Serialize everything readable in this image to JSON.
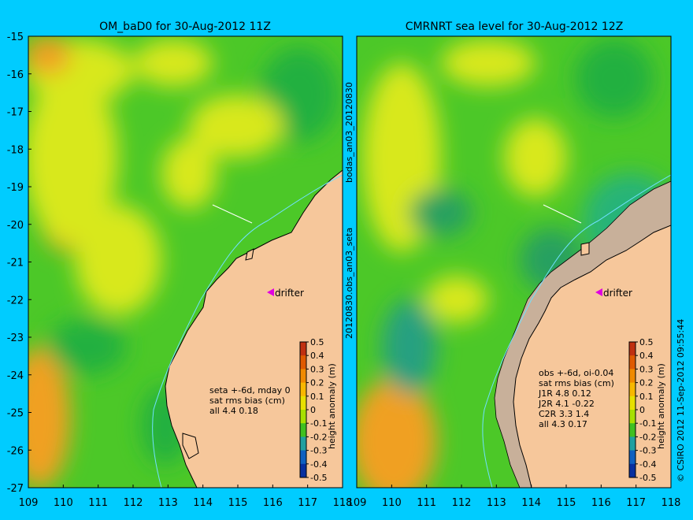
{
  "left_panel": {
    "title": "OM_baD0 for 30-Aug-2012 11Z",
    "x_ticks": [
      "109",
      "110",
      "111",
      "112",
      "113",
      "114",
      "115",
      "116",
      "117",
      "118"
    ],
    "y_ticks": [
      "-15",
      "-16",
      "-17",
      "-18",
      "-19",
      "-20",
      "-21",
      "-22",
      "-23",
      "-24",
      "-25",
      "-26",
      "-27"
    ],
    "drifter_label": "drifter",
    "stats_lines": [
      "seta +-6d, mday 0",
      "sat rms bias (cm)",
      "all 4.4 0.18"
    ]
  },
  "right_panel": {
    "title": "CMRNRT sea level  for 30-Aug-2012 12Z",
    "x_ticks": [
      "109",
      "110",
      "111",
      "112",
      "113",
      "114",
      "115",
      "116",
      "117",
      "118"
    ],
    "drifter_label": "drifter",
    "stats_lines": [
      "obs +-6d, oi-0.04",
      "sat rms bias (cm)",
      "J1R   4.8 0.12",
      "J2R   4.1 -0.22",
      "C2R   3.3 1.4",
      "all 4.3 0.17"
    ]
  },
  "middle_labels": {
    "top": "bodas_an03_20120830",
    "bottom": "20120830.obs_an03_seta"
  },
  "colorbar": {
    "label": "height anomaly (m)",
    "ticks": [
      "0.5",
      "0.4",
      "0.3",
      "0.2",
      "0.1",
      "0",
      "-0.1",
      "-0.2",
      "-0.3",
      "-0.4",
      "-0.5"
    ],
    "colors": [
      "#c03010",
      "#e05a00",
      "#f08a00",
      "#f8b800",
      "#e8e000",
      "#a8e000",
      "#40c020",
      "#20a0a0",
      "#1060c0",
      "#0830a0",
      "#000070"
    ]
  },
  "credit": "© CSIRO 2012   11-Sep-2012 09:55:44",
  "colors": {
    "background": "#00ccff",
    "land": "#f6c79b",
    "shelf_mask": "#c8b09a",
    "ocean_green": "#4cc828",
    "ocean_yellow": "#d8e81e",
    "ocean_orange": "#f0a020",
    "ocean_teal": "#28b478",
    "drifter": "#e000e0"
  }
}
